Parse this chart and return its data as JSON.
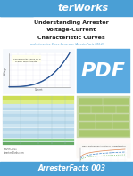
{
  "title_bar_color": "#4a9fd5",
  "title_bar_text": "terWorks",
  "title_bar_text_color": "#ffffff",
  "bg_color": "#f0f0f0",
  "heading_line1": "Understanding Arrester",
  "heading_line2": "Voltage-Current",
  "heading_line3": "Characteristic Curves",
  "subheading": "and Interactive Curve Generator (ArresterFacts 003.1)",
  "heading_color": "#222222",
  "subheading_color": "#4a9fd5",
  "footer_bar_color": "#4a9fd5",
  "footer_text": "ArresterFacts 003",
  "footer_text_color": "#ffffff",
  "pdf_label": "PDF",
  "pdf_bg": "#5baae0",
  "pdf_text_color": "#ffffff",
  "bottom_left_text1": "March 2011",
  "bottom_left_text2": "ArresterWorks.com"
}
